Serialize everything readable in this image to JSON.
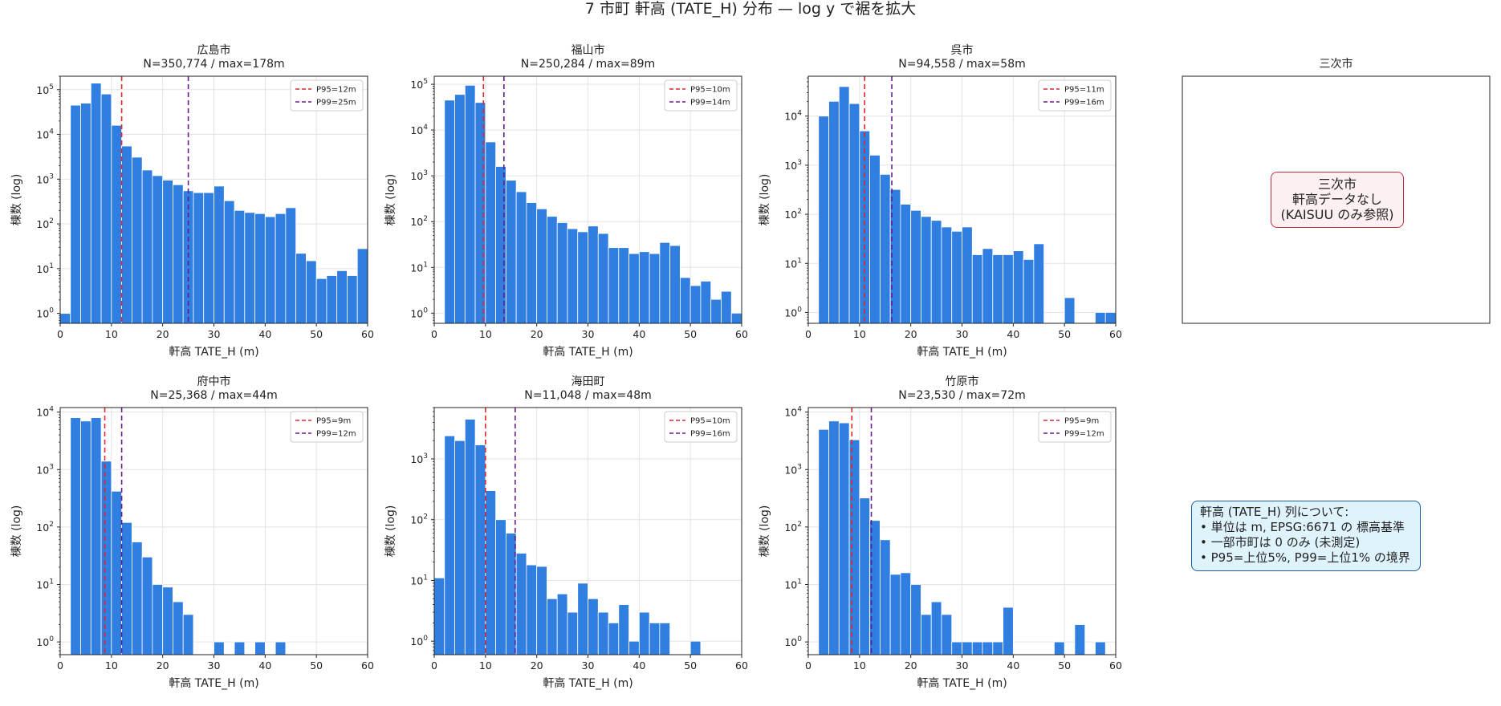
{
  "suptitle": "7 市町 軒高 (TATE_H) 分布 — log y で裾を拡大",
  "colors": {
    "bar": "#2f7ee0",
    "bar_edge": "#ffffff",
    "p95": "#e0262e",
    "p99": "#6a1b8a",
    "nodata_border": "#c0303c",
    "nodata_bg": "#fcf0f0",
    "note_border": "#1f5aa6",
    "note_bg": "#dff3fc"
  },
  "nodata_panel": {
    "title": "三次市",
    "lines": [
      "三次市",
      "軒高データなし",
      "(KAISUU のみ参照)"
    ]
  },
  "note": {
    "lines": [
      "軒高 (TATE_H) 列について:",
      "• 単位は m, EPSG:6671 の 標高基準",
      "• 一部市町は 0 のみ (未測定)",
      "• P95=上位5%, P99=上位1% の境界"
    ]
  },
  "chart_data": [
    {
      "type": "bar",
      "title": "広島市",
      "subtitle": "N=350,774 / max=178m",
      "xlabel": "軒高 TATE_H (m)",
      "ylabel": "棟数 (log)",
      "xlim": [
        0,
        60
      ],
      "yscale": "log",
      "ylim": [
        0.6,
        200000
      ],
      "yticks": [
        1,
        10,
        100,
        1000,
        10000,
        100000
      ],
      "xticks": [
        0,
        10,
        20,
        30,
        40,
        50,
        60
      ],
      "bin_width": 2,
      "bin_start": 0,
      "values": [
        1,
        45000,
        50000,
        140000,
        80000,
        16000,
        5500,
        3100,
        1600,
        1200,
        950,
        750,
        550,
        500,
        500,
        700,
        330,
        200,
        180,
        170,
        145,
        170,
        230,
        22,
        15,
        6,
        7,
        9,
        7,
        28
      ],
      "lines": [
        {
          "label": "P95=12m",
          "x": 12,
          "kind": "p95"
        },
        {
          "label": "P99=25m",
          "x": 25,
          "kind": "p99"
        }
      ],
      "legend": "top-right",
      "grid": true
    },
    {
      "type": "bar",
      "title": "福山市",
      "subtitle": "N=250,284 / max=89m",
      "xlabel": "軒高 TATE_H (m)",
      "ylabel": "棟数 (log)",
      "xlim": [
        0,
        60
      ],
      "yscale": "log",
      "ylim": [
        0.6,
        150000
      ],
      "yticks": [
        1,
        10,
        100,
        1000,
        10000,
        100000
      ],
      "xticks": [
        0,
        10,
        20,
        30,
        40,
        50,
        60
      ],
      "bin_width": 2,
      "bin_start": 2,
      "values": [
        45000,
        60000,
        95000,
        40000,
        5500,
        1600,
        800,
        450,
        260,
        190,
        130,
        95,
        70,
        60,
        80,
        55,
        27,
        27,
        20,
        22,
        20,
        35,
        30,
        6,
        4,
        5,
        2,
        3,
        1
      ],
      "lines": [
        {
          "label": "P95=10m",
          "x": 9.6,
          "kind": "p95"
        },
        {
          "label": "P99=14m",
          "x": 13.6,
          "kind": "p99"
        }
      ],
      "legend": "top-right",
      "grid": true
    },
    {
      "type": "bar",
      "title": "呉市",
      "subtitle": "N=94,558 / max=58m",
      "xlabel": "軒高 TATE_H (m)",
      "ylabel": "棟数 (log)",
      "xlim": [
        0,
        60
      ],
      "yscale": "log",
      "ylim": [
        0.6,
        65000
      ],
      "yticks": [
        1,
        10,
        100,
        1000,
        10000
      ],
      "xticks": [
        0,
        10,
        20,
        30,
        40,
        50,
        60
      ],
      "bin_width": 2,
      "bin_start": 2,
      "values": [
        10000,
        20000,
        40000,
        18000,
        5000,
        1600,
        650,
        320,
        160,
        120,
        90,
        75,
        55,
        45,
        55,
        15,
        20,
        15,
        15,
        18,
        12,
        25,
        0,
        0,
        2,
        0,
        0,
        1,
        1
      ],
      "lines": [
        {
          "label": "P95=11m",
          "x": 11,
          "kind": "p95"
        },
        {
          "label": "P99=16m",
          "x": 16.3,
          "kind": "p99"
        }
      ],
      "legend": "top-right",
      "grid": true
    },
    {
      "type": "bar",
      "title": "府中市",
      "subtitle": "N=25,368 / max=44m",
      "xlabel": "軒高 TATE_H (m)",
      "ylabel": "棟数 (log)",
      "xlim": [
        0,
        60
      ],
      "yscale": "log",
      "ylim": [
        0.6,
        12000
      ],
      "yticks": [
        1,
        10,
        100,
        1000,
        10000
      ],
      "xticks": [
        0,
        10,
        20,
        30,
        40,
        50,
        60
      ],
      "bin_width": 2,
      "bin_start": 2,
      "values": [
        8000,
        7000,
        8000,
        1400,
        420,
        120,
        55,
        30,
        10,
        9,
        5,
        3,
        0,
        0,
        1,
        0,
        1,
        0,
        1,
        0,
        1
      ],
      "lines": [
        {
          "label": "P95=9m",
          "x": 8.7,
          "kind": "p95"
        },
        {
          "label": "P99=12m",
          "x": 12,
          "kind": "p99"
        }
      ],
      "legend": "top-right",
      "grid": true
    },
    {
      "type": "bar",
      "title": "海田町",
      "subtitle": "N=11,048 / max=48m",
      "xlabel": "軒高 TATE_H (m)",
      "ylabel": "棟数 (log)",
      "xlim": [
        0,
        60
      ],
      "yscale": "log",
      "ylim": [
        0.6,
        7000
      ],
      "yticks": [
        1,
        10,
        100,
        1000
      ],
      "xticks": [
        0,
        10,
        20,
        30,
        40,
        50,
        60
      ],
      "bin_width": 2,
      "bin_start": 0,
      "values": [
        11,
        2400,
        2000,
        4500,
        1700,
        300,
        100,
        60,
        28,
        18,
        17,
        5,
        6,
        3,
        9,
        5,
        3,
        2,
        4,
        1,
        3,
        2,
        2,
        0,
        0,
        1
      ],
      "lines": [
        {
          "label": "P95=10m",
          "x": 10,
          "kind": "p95"
        },
        {
          "label": "P99=16m",
          "x": 15.8,
          "kind": "p99"
        }
      ],
      "legend": "top-right",
      "grid": true
    },
    {
      "type": "bar",
      "title": "竹原市",
      "subtitle": "N=23,530 / max=72m",
      "xlabel": "軒高 TATE_H (m)",
      "ylabel": "棟数 (log)",
      "xlim": [
        0,
        60
      ],
      "yscale": "log",
      "ylim": [
        0.6,
        12000
      ],
      "yticks": [
        1,
        10,
        100,
        1000,
        10000
      ],
      "xticks": [
        0,
        10,
        20,
        30,
        40,
        50,
        60
      ],
      "bin_width": 2,
      "bin_start": 2,
      "values": [
        5000,
        7000,
        6500,
        3300,
        320,
        130,
        60,
        15,
        16,
        10,
        3,
        5,
        3,
        1,
        1,
        1,
        1,
        1,
        4,
        0,
        0,
        0,
        0,
        1,
        0,
        2,
        0,
        1
      ],
      "lines": [
        {
          "label": "P95=9m",
          "x": 8.5,
          "kind": "p95"
        },
        {
          "label": "P99=12m",
          "x": 12.3,
          "kind": "p99"
        }
      ],
      "legend": "top-right",
      "grid": true
    }
  ]
}
